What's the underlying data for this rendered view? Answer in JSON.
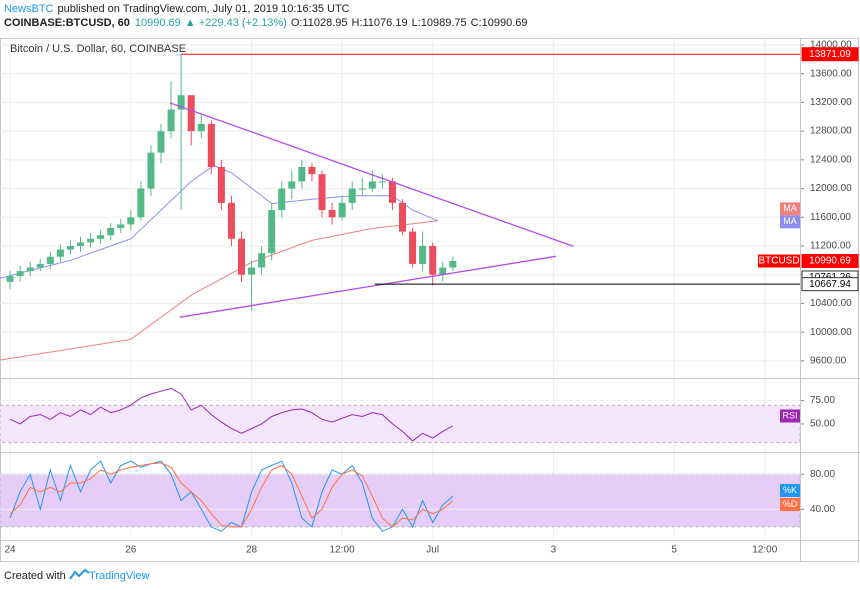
{
  "header": {
    "author": "NewsBTC",
    "published": "published on TradingView.com, July 01, 2019 10:16:35 UTC",
    "symbol": "COINBASE:BTCUSD, 60",
    "last": "10990.69",
    "change": "▲ +229.43 (+2.13%)",
    "open": "O:11028.95",
    "high": "H:11076.19",
    "low": "L:10989.75",
    "close": "C:10990.69"
  },
  "footer": {
    "created": "Created with",
    "brand": "TradingView"
  },
  "chart_data": [
    {
      "type": "candlestick",
      "title": "Bitcoin / U.S. Dollar, 60, COINBASE",
      "name": "BTCUSD",
      "up_color": "#53b987",
      "down_color": "#eb4d5c",
      "badge_color": "#ff0000",
      "x": [
        0,
        4,
        8,
        12,
        16,
        20,
        24,
        28,
        32,
        36,
        40,
        44,
        48,
        52,
        56,
        60,
        64,
        68,
        72,
        76,
        80,
        84,
        88,
        92,
        96,
        100,
        104,
        108,
        112,
        116,
        120,
        124,
        128,
        132,
        136,
        140,
        144,
        148,
        152,
        156,
        160,
        164,
        168,
        172,
        176
      ],
      "open": [
        10700,
        10780,
        10850,
        10900,
        10950,
        11050,
        11150,
        11200,
        11250,
        11300,
        11350,
        11450,
        11500,
        11600,
        12000,
        12500,
        12800,
        13100,
        13300,
        12800,
        12900,
        12300,
        11800,
        11300,
        10800,
        10900,
        11100,
        11700,
        12000,
        12100,
        12300,
        12200,
        11700,
        11600,
        11800,
        12000,
        12000,
        12100,
        12100,
        11800,
        11400,
        10950,
        11200,
        10800,
        10900
      ],
      "high": [
        10850,
        10920,
        10980,
        11020,
        11120,
        11220,
        11280,
        11330,
        11380,
        11420,
        11520,
        11580,
        11700,
        12100,
        12600,
        12900,
        13500,
        13871.09,
        13300,
        13050,
        12950,
        12400,
        11900,
        11400,
        11000,
        11200,
        11800,
        12100,
        12250,
        12400,
        12350,
        12250,
        11800,
        11900,
        12100,
        12150,
        12250,
        12200,
        12150,
        11850,
        11450,
        11400,
        11250,
        10980,
        11050
      ],
      "low": [
        10600,
        10700,
        10780,
        10850,
        10880,
        10980,
        11080,
        11120,
        11180,
        11230,
        11280,
        11380,
        11420,
        11550,
        11900,
        12350,
        12700,
        11700,
        12600,
        12700,
        12200,
        11700,
        11200,
        10700,
        10300,
        10800,
        11000,
        11600,
        11850,
        12000,
        12100,
        11600,
        11500,
        11550,
        11700,
        11900,
        11950,
        12000,
        11700,
        11350,
        10900,
        10850,
        10650,
        10700,
        10850
      ],
      "close": [
        10780,
        10850,
        10900,
        10950,
        11050,
        11150,
        11200,
        11250,
        11300,
        11350,
        11450,
        11500,
        11600,
        12000,
        12500,
        12800,
        13100,
        13300,
        12800,
        12900,
        12300,
        11800,
        11300,
        10800,
        10900,
        11100,
        11700,
        12000,
        12100,
        12300,
        12200,
        11700,
        11600,
        11800,
        12000,
        12000,
        12100,
        12100,
        11800,
        11400,
        10950,
        11200,
        10800,
        10900,
        10990.69
      ],
      "ma": [
        {
          "name": "MA",
          "color": "#f08080",
          "x": [
            -4,
            48,
            72,
            96,
            120,
            144,
            170
          ],
          "values": [
            9610,
            9900,
            10514,
            10972,
            11277,
            11444,
            11550
          ]
        },
        {
          "name": "MA",
          "color": "#8c8ff0",
          "x": [
            -4,
            24,
            48,
            60,
            72,
            81,
            88,
            104,
            120,
            136,
            152,
            160,
            170
          ],
          "values": [
            10750,
            11000,
            11300,
            11700,
            12100,
            12320,
            12220,
            11790,
            11850,
            11900,
            11900,
            11700,
            11550
          ]
        }
      ],
      "trendlines": [
        {
          "color": "#b44ce8",
          "x": [
            63.5,
            224
          ],
          "values": [
            13194,
            11194
          ]
        },
        {
          "color": "#b44ce8",
          "x": [
            67.5,
            217
          ],
          "values": [
            10208,
            11056
          ]
        }
      ],
      "levels": [
        {
          "value": 13871.09,
          "color": "#ff0000",
          "badge": "#ff0000",
          "start": 68
        },
        {
          "value": 10761.26,
          "color": "#000000",
          "badge": "#ffffff"
        },
        {
          "value": 10667.94,
          "color": "#000000",
          "badge": "#ffffff",
          "start": 145
        }
      ],
      "ylim": [
        9361,
        14083
      ],
      "yticks": [
        {
          "value": 9600,
          "label": "9600.00"
        },
        {
          "value": 10000,
          "label": "10000.00"
        },
        {
          "value": 10400,
          "label": "10400.00"
        },
        {
          "value": 10800,
          "label": "10800.00"
        },
        {
          "value": 11200,
          "label": "11200.00"
        },
        {
          "value": 11600,
          "label": "11600.00"
        },
        {
          "value": 12000,
          "label": "12000.00"
        },
        {
          "value": 12400,
          "label": "12400.00"
        },
        {
          "value": 12800,
          "label": "12800.00"
        },
        {
          "value": 13200,
          "label": "13200.00"
        },
        {
          "value": 13600,
          "label": "13600.00"
        },
        {
          "value": 14000,
          "label": "14000.00"
        }
      ],
      "grid": true
    },
    {
      "type": "line",
      "band": [
        30,
        70
      ],
      "band_color": "#f3e5fb",
      "series": [
        {
          "name": "RSI",
          "color": "#9c27b0",
          "values": [
            55,
            50,
            58,
            60,
            55,
            62,
            58,
            65,
            60,
            68,
            62,
            65,
            70,
            78,
            82,
            85,
            88,
            82,
            65,
            70,
            60,
            52,
            45,
            40,
            45,
            50,
            58,
            62,
            65,
            66,
            62,
            55,
            52,
            56,
            60,
            58,
            62,
            60,
            50,
            42,
            32,
            40,
            35,
            42,
            48
          ]
        }
      ],
      "ylim": [
        20,
        97
      ],
      "yticks": [
        {
          "value": 50,
          "label": "50.00"
        },
        {
          "value": 75,
          "label": "75.00"
        }
      ],
      "grid": true
    },
    {
      "type": "line",
      "band": [
        20,
        80
      ],
      "band_color": "#e6cdf7",
      "series": [
        {
          "name": "%K",
          "color": "#2196f3",
          "values": [
            30,
            60,
            80,
            40,
            85,
            50,
            90,
            60,
            85,
            95,
            70,
            90,
            95,
            88,
            92,
            95,
            80,
            50,
            60,
            40,
            20,
            15,
            25,
            20,
            60,
            85,
            90,
            95,
            70,
            30,
            20,
            60,
            85,
            80,
            90,
            70,
            30,
            15,
            20,
            40,
            20,
            50,
            25,
            45,
            55
          ]
        },
        {
          "name": "%D",
          "color": "#ff7043",
          "values": [
            35,
            45,
            65,
            60,
            65,
            60,
            70,
            70,
            75,
            85,
            80,
            85,
            88,
            90,
            92,
            93,
            88,
            70,
            60,
            50,
            35,
            22,
            20,
            20,
            40,
            65,
            85,
            90,
            80,
            55,
            30,
            40,
            65,
            80,
            85,
            78,
            55,
            30,
            20,
            30,
            28,
            40,
            35,
            40,
            50
          ]
        }
      ],
      "ylim": [
        5,
        102
      ],
      "yticks": [
        {
          "value": 40,
          "label": "40.00"
        },
        {
          "value": 80,
          "label": "80.00"
        }
      ],
      "grid": true,
      "xlim": [
        -4,
        314
      ],
      "xticks": [
        {
          "value": 0,
          "label": "24"
        },
        {
          "value": 48,
          "label": "26"
        },
        {
          "value": 96,
          "label": "28"
        },
        {
          "value": 132,
          "label": "12:00"
        },
        {
          "value": 168,
          "label": "Jul"
        },
        {
          "value": 216,
          "label": "3"
        },
        {
          "value": 264,
          "label": "5"
        },
        {
          "value": 300,
          "label": "12:00"
        }
      ]
    }
  ]
}
